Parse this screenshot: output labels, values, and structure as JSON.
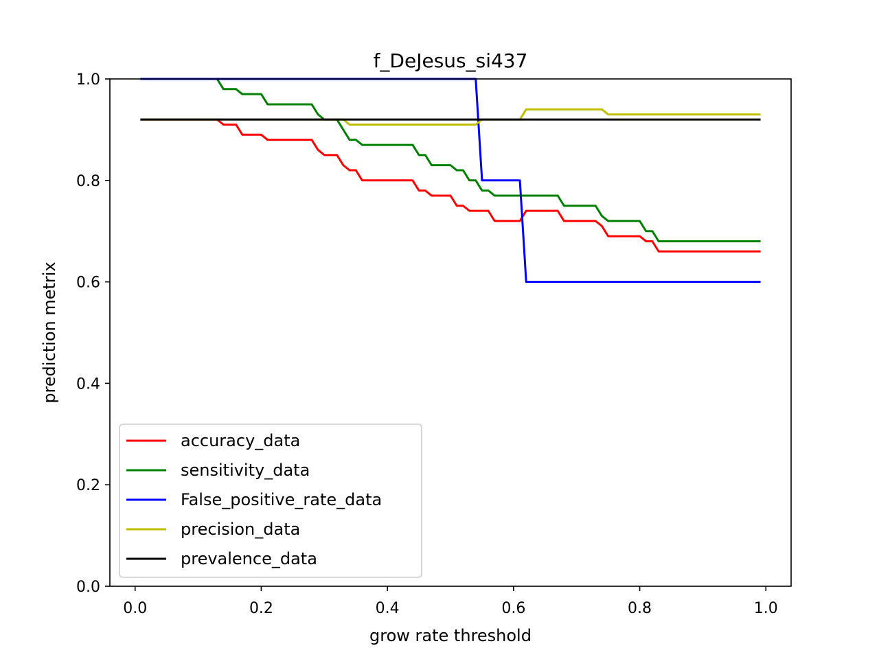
{
  "chart_data": {
    "type": "line",
    "title": "f_DeJesus_si437",
    "xlabel": "grow rate threshold",
    "ylabel": "prediction metrix",
    "xlim": [
      -0.04,
      1.04
    ],
    "ylim": [
      0.0,
      1.0
    ],
    "xticks": [
      0.0,
      0.2,
      0.4,
      0.6,
      0.8,
      1.0
    ],
    "xtick_labels": [
      "0.0",
      "0.2",
      "0.4",
      "0.6",
      "0.8",
      "1.0"
    ],
    "yticks": [
      0.0,
      0.2,
      0.4,
      0.6,
      0.8,
      1.0
    ],
    "ytick_labels": [
      "0.0",
      "0.2",
      "0.4",
      "0.6",
      "0.8",
      "1.0"
    ],
    "grid": false,
    "legend_position": "lower-left",
    "series": [
      {
        "name": "accuracy_data",
        "color": "#ff0000",
        "x": [
          0.01,
          0.13,
          0.14,
          0.16,
          0.17,
          0.2,
          0.21,
          0.28,
          0.29,
          0.3,
          0.32,
          0.33,
          0.34,
          0.35,
          0.36,
          0.44,
          0.45,
          0.46,
          0.47,
          0.5,
          0.51,
          0.52,
          0.53,
          0.56,
          0.57,
          0.61,
          0.62,
          0.67,
          0.68,
          0.73,
          0.74,
          0.75,
          0.8,
          0.81,
          0.82,
          0.83,
          0.99
        ],
        "values": [
          0.92,
          0.92,
          0.91,
          0.91,
          0.89,
          0.89,
          0.88,
          0.88,
          0.86,
          0.85,
          0.85,
          0.83,
          0.82,
          0.82,
          0.8,
          0.8,
          0.78,
          0.78,
          0.77,
          0.77,
          0.75,
          0.75,
          0.74,
          0.74,
          0.72,
          0.72,
          0.74,
          0.74,
          0.72,
          0.72,
          0.71,
          0.69,
          0.69,
          0.68,
          0.68,
          0.66,
          0.66
        ]
      },
      {
        "name": "sensitivity_data",
        "color": "#008000",
        "x": [
          0.01,
          0.13,
          0.14,
          0.16,
          0.17,
          0.2,
          0.21,
          0.28,
          0.29,
          0.3,
          0.32,
          0.33,
          0.34,
          0.35,
          0.36,
          0.44,
          0.45,
          0.46,
          0.47,
          0.5,
          0.51,
          0.52,
          0.53,
          0.54,
          0.55,
          0.56,
          0.57,
          0.67,
          0.68,
          0.73,
          0.74,
          0.75,
          0.8,
          0.81,
          0.82,
          0.83,
          0.99
        ],
        "values": [
          1.0,
          1.0,
          0.98,
          0.98,
          0.97,
          0.97,
          0.95,
          0.95,
          0.93,
          0.92,
          0.92,
          0.9,
          0.88,
          0.88,
          0.87,
          0.87,
          0.85,
          0.85,
          0.83,
          0.83,
          0.82,
          0.82,
          0.8,
          0.8,
          0.78,
          0.78,
          0.77,
          0.77,
          0.75,
          0.75,
          0.73,
          0.72,
          0.72,
          0.7,
          0.7,
          0.68,
          0.68
        ]
      },
      {
        "name": "False_positive_rate_data",
        "color": "#0000ff",
        "x": [
          0.01,
          0.54,
          0.55,
          0.61,
          0.62,
          0.99
        ],
        "values": [
          1.0,
          1.0,
          0.8,
          0.8,
          0.6,
          0.6
        ]
      },
      {
        "name": "precision_data",
        "color": "#bfbf00",
        "x": [
          0.01,
          0.32,
          0.33,
          0.34,
          0.54,
          0.55,
          0.61,
          0.62,
          0.74,
          0.75,
          0.99
        ],
        "values": [
          0.92,
          0.92,
          0.92,
          0.91,
          0.91,
          0.92,
          0.92,
          0.94,
          0.94,
          0.93,
          0.93
        ]
      },
      {
        "name": "prevalence_data",
        "color": "#000000",
        "x": [
          0.01,
          0.99
        ],
        "values": [
          0.92,
          0.92
        ]
      }
    ]
  }
}
